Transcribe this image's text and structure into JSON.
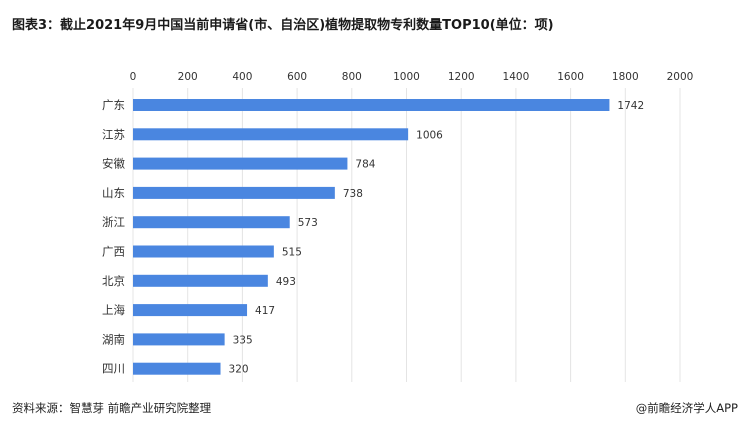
{
  "title": "图表3：截止2021年9月中国当前申请省(市、自治区)植物提取物专利数量TOP10(单位：项)",
  "footer": {
    "source": "资料来源：智慧芽 前瞻产业研究院整理",
    "credit": "@前瞻经济学人APP"
  },
  "colors": {
    "bar": "#4a86e0",
    "grid": "#e4e4e4",
    "text": "#333333"
  },
  "chart_data": {
    "type": "bar",
    "orientation": "horizontal",
    "title": "图表3：截止2021年9月中国当前申请省(市、自治区)植物提取物专利数量TOP10(单位：项)",
    "categories": [
      "广东",
      "江苏",
      "安徽",
      "山东",
      "浙江",
      "广西",
      "北京",
      "上海",
      "湖南",
      "四川"
    ],
    "values": [
      1742,
      1006,
      784,
      738,
      573,
      515,
      493,
      417,
      335,
      320
    ],
    "xlim": [
      0,
      2000
    ],
    "xticks": [
      0,
      200,
      400,
      600,
      800,
      1000,
      1200,
      1400,
      1600,
      1800,
      2000
    ],
    "axis_position": "top",
    "grid": true,
    "legend": "none",
    "data_labels": true
  }
}
